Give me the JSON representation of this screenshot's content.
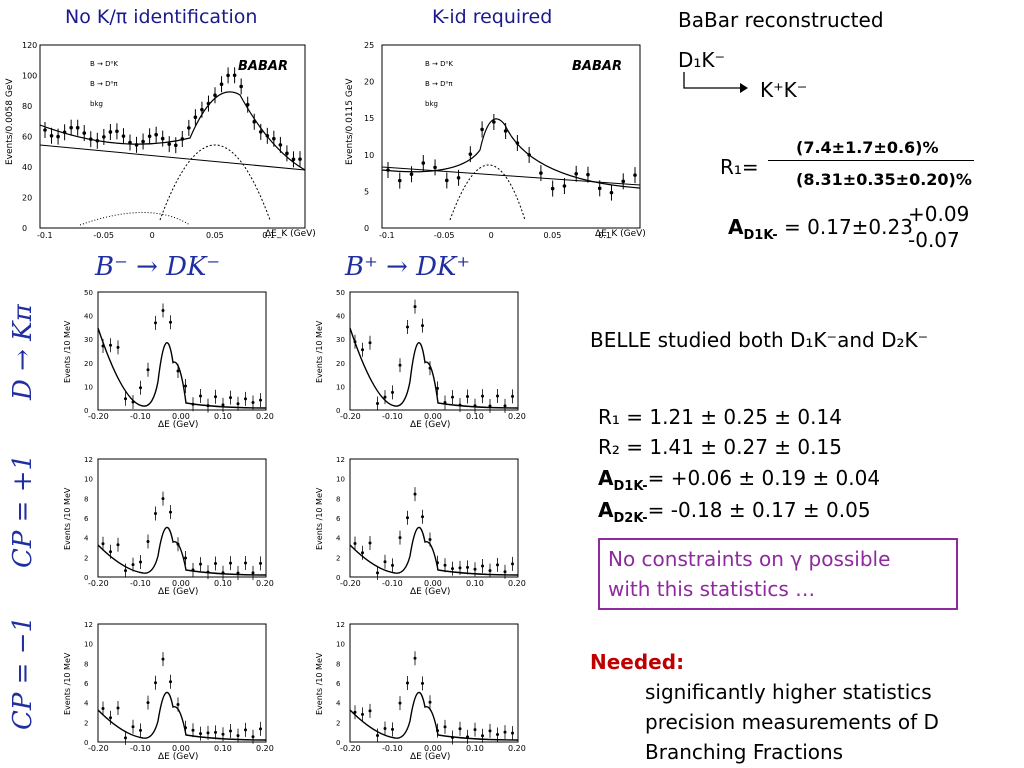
{
  "babar": {
    "left_title": "No K/π identification",
    "right_title": "K-id required",
    "left_ylabel": "Events/0.0058 GeV",
    "right_ylabel": "Events/0.0115 GeV",
    "xlabel": "ΔE_K (GeV)",
    "logo": "BABAR",
    "legend": [
      "B → D⁰K",
      "B → D⁰π",
      "bkg"
    ],
    "left_xticks": [
      "-0.1",
      "-0.05",
      "0",
      "0.05",
      "0.1"
    ],
    "left_yticks": [
      "0",
      "20",
      "40",
      "60",
      "80",
      "100",
      "120"
    ],
    "right_xticks": [
      "-0.1",
      "-0.05",
      "0",
      "0.05",
      "0.1"
    ],
    "right_yticks": [
      "0",
      "5",
      "10",
      "15",
      "20",
      "25"
    ]
  },
  "belle": {
    "col1_title": "B⁻ → DK⁻",
    "col2_title": "B⁺ → DK⁺",
    "row_labels": [
      "D → Kπ",
      "CP = +1",
      "CP = −1"
    ],
    "xlabel": "ΔE (GeV)",
    "ylabel": "Events /10 MeV",
    "xticks": [
      "-0.20",
      "-0.10",
      "0.00",
      "0.10",
      "0.20"
    ],
    "row1_yticks": [
      "0",
      "10",
      "20",
      "30",
      "40",
      "50"
    ],
    "row2_yticks": [
      "0",
      "2",
      "4",
      "6",
      "8",
      "10",
      "12"
    ],
    "row3_yticks": [
      "0",
      "2",
      "4",
      "6",
      "8",
      "10",
      "12"
    ]
  },
  "right": {
    "babar_line1": "BaBar  reconstructed",
    "babar_line2": "D₁K⁻",
    "babar_line3": "K⁺K⁻",
    "r1_label": "R₁=",
    "r1_num": "(7.4±1.7±0.6)%",
    "r1_den": "(8.31±0.35±0.20)%",
    "a_label": "A",
    "a_sub": "D1K-",
    "a_value": " = 0.17±0.23",
    "a_up": "+0.09",
    "a_down": "-0.07",
    "belle_text": "BELLE studied both D₁K⁻and  D₂K⁻",
    "r1_line": "R₁ = 1.21 ± 0.25 ± 0.14",
    "r2_line": "R₂ = 1.41 ± 0.27 ± 0.15",
    "a1_label": "A",
    "a1_sub": "D1K-",
    "a1_rest": "= +0.06 ± 0.19 ± 0.04",
    "a2_label": "A",
    "a2_sub": "D2K-",
    "a2_rest": "= -0.18 ± 0.17 ± 0.05",
    "constraint_l1": "No constraints on γ possible",
    "constraint_l2": "with this statistics …",
    "needed_label": "Needed:",
    "needed_l1": "significantly higher statistics",
    "needed_l2": "precision measurements of D",
    "needed_l3": "Branching Fractions"
  }
}
